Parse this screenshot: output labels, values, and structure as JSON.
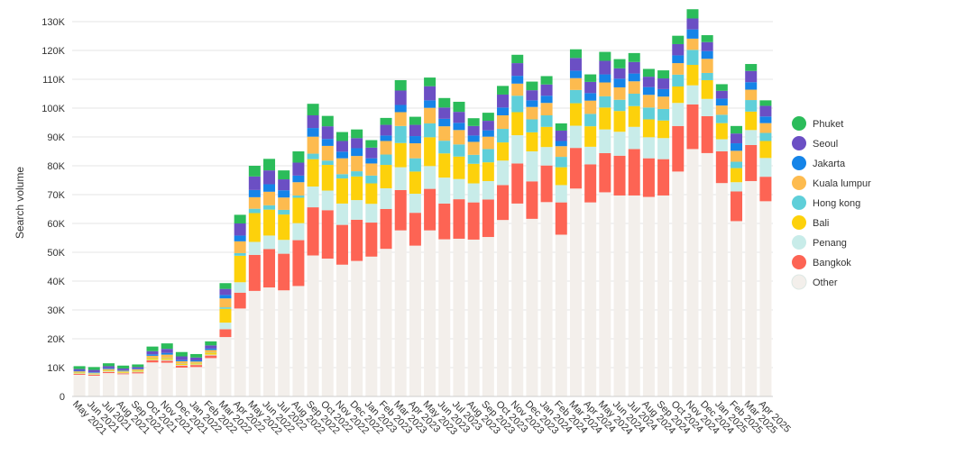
{
  "chart_data": {
    "type": "bar",
    "stacked": true,
    "ylabel": "Search volume",
    "xlabel": "",
    "ylim": [
      0,
      135000
    ],
    "yticks": [
      {
        "value": 0,
        "label": "0"
      },
      {
        "value": 10000,
        "label": "10K"
      },
      {
        "value": 20000,
        "label": "20K"
      },
      {
        "value": 30000,
        "label": "30K"
      },
      {
        "value": 40000,
        "label": "40K"
      },
      {
        "value": 50000,
        "label": "50K"
      },
      {
        "value": 60000,
        "label": "60K"
      },
      {
        "value": 70000,
        "label": "70K"
      },
      {
        "value": 80000,
        "label": "80K"
      },
      {
        "value": 90000,
        "label": "90K"
      },
      {
        "value": 100000,
        "label": "100K"
      },
      {
        "value": 110000,
        "label": "110K"
      },
      {
        "value": 120000,
        "label": "120K"
      },
      {
        "value": 130000,
        "label": "130K"
      }
    ],
    "grid": "horizontal",
    "legend_position": "right",
    "categories": [
      "May 2021",
      "Jun 2021",
      "Jul 2021",
      "Aug 2021",
      "Sep 2021",
      "Oct 2021",
      "Nov 2021",
      "Dec 2021",
      "Jan 2022",
      "Feb 2022",
      "Mar 2022",
      "Apr 2022",
      "May 2022",
      "Jun 2022",
      "Jul 2022",
      "Aug 2022",
      "Sep 2022",
      "Oct 2022",
      "Nov 2022",
      "Dec 2022",
      "Jan 2023",
      "Feb 2023",
      "Mar 2023",
      "Apr 2023",
      "May 2023",
      "Jun 2023",
      "Jul 2023",
      "Aug 2023",
      "Sep 2023",
      "Oct 2023",
      "Nov 2023",
      "Dec 2023",
      "Jan 2024",
      "Feb 2024",
      "Mar 2024",
      "Apr 2024",
      "May 2024",
      "Jun 2024",
      "Jul 2024",
      "Aug 2024",
      "Sep 2024",
      "Oct 2024",
      "Nov 2024",
      "Dec 2024",
      "Jan 2025",
      "Feb 2025",
      "Mar 2025",
      "Apr 2025"
    ],
    "series": [
      {
        "name": "Other",
        "color": "#f3efeb",
        "values": [
          7500,
          7200,
          8100,
          7700,
          8000,
          11800,
          11700,
          10000,
          10200,
          13300,
          20600,
          30500,
          36600,
          37800,
          36800,
          38300,
          48900,
          47800,
          45700,
          47000,
          48500,
          51200,
          57600,
          52300,
          57600,
          54500,
          54700,
          54400,
          55300,
          61200,
          66900,
          61600,
          67400,
          56100,
          72100,
          67300,
          70800,
          69700,
          69700,
          69200,
          69700,
          78000,
          85800,
          84400,
          74000,
          60800,
          74700,
          67700
        ]
      },
      {
        "name": "Bangkok",
        "color": "#fd6454",
        "values": [
          300,
          300,
          400,
          300,
          400,
          700,
          700,
          700,
          700,
          900,
          2700,
          5500,
          12500,
          13300,
          12700,
          15900,
          16700,
          16800,
          13800,
          14300,
          11800,
          13800,
          14000,
          11400,
          14400,
          12400,
          13700,
          12900,
          13000,
          12100,
          13900,
          13000,
          12700,
          11200,
          14100,
          13200,
          13600,
          13800,
          16100,
          13400,
          12600,
          15800,
          15500,
          12800,
          11000,
          10300,
          12500,
          8500
        ]
      },
      {
        "name": "Penang",
        "color": "#c8ece9",
        "values": [
          200,
          200,
          200,
          200,
          200,
          200,
          300,
          200,
          200,
          300,
          2300,
          3600,
          4500,
          4700,
          4800,
          5900,
          7200,
          6800,
          7400,
          6800,
          6500,
          7200,
          7900,
          6600,
          7900,
          9000,
          7000,
          6600,
          6400,
          8500,
          9800,
          10400,
          6400,
          6000,
          7700,
          6100,
          8200,
          8300,
          7700,
          7300,
          7300,
          8000,
          6600,
          6000,
          4200,
          3200,
          5200,
          6500
        ]
      },
      {
        "name": "Bali",
        "color": "#fdd10b",
        "values": [
          300,
          200,
          300,
          300,
          300,
          600,
          500,
          400,
          400,
          700,
          4800,
          9200,
          10000,
          9000,
          8800,
          8800,
          9500,
          8900,
          8700,
          8200,
          7100,
          8100,
          8400,
          7700,
          10000,
          8400,
          7800,
          6800,
          6500,
          6300,
          8000,
          6600,
          7000,
          6200,
          7800,
          7100,
          7600,
          7200,
          7200,
          6200,
          6100,
          5700,
          7100,
          6500,
          5600,
          4900,
          6400,
          5900
        ]
      },
      {
        "name": "Hong kong",
        "color": "#5fcfd9",
        "values": [
          100,
          100,
          100,
          100,
          100,
          100,
          100,
          100,
          100,
          100,
          500,
          900,
          1500,
          1500,
          1600,
          800,
          1900,
          1500,
          1500,
          1800,
          2700,
          3600,
          5900,
          4600,
          4800,
          4400,
          4200,
          3100,
          4600,
          4700,
          5700,
          4500,
          4000,
          3600,
          4600,
          4300,
          3900,
          3900,
          4300,
          4100,
          4000,
          4100,
          5200,
          2500,
          2900,
          2200,
          4000,
          2800
        ]
      },
      {
        "name": "Kuala lumpur",
        "color": "#fdbb4f",
        "values": [
          300,
          200,
          400,
          300,
          400,
          700,
          1200,
          800,
          500,
          800,
          3100,
          4100,
          4000,
          4700,
          4300,
          4600,
          5900,
          5100,
          5500,
          5300,
          4200,
          4700,
          4800,
          5200,
          5400,
          5000,
          5000,
          4500,
          4300,
          4700,
          4200,
          4300,
          4300,
          3700,
          4100,
          4600,
          4800,
          4300,
          4300,
          4400,
          4300,
          4000,
          3900,
          4900,
          3200,
          3800,
          3600,
          3400
        ]
      },
      {
        "name": "Jakarta",
        "color": "#1584e8",
        "values": [
          200,
          200,
          300,
          200,
          200,
          500,
          600,
          400,
          400,
          500,
          1200,
          2000,
          2500,
          2600,
          2500,
          2300,
          3000,
          2400,
          2300,
          2700,
          1800,
          1900,
          2500,
          2500,
          2600,
          2600,
          2500,
          2200,
          2200,
          2700,
          2700,
          2300,
          2500,
          1800,
          2600,
          2600,
          2800,
          3000,
          2700,
          2700,
          2600,
          2700,
          3200,
          2700,
          2400,
          2600,
          2600,
          2300
        ]
      },
      {
        "name": "Seoul",
        "color": "#6b4fc4",
        "values": [
          600,
          800,
          700,
          600,
          600,
          1100,
          1400,
          1300,
          1000,
          1100,
          2100,
          4200,
          4700,
          4800,
          3800,
          4500,
          4400,
          4400,
          3700,
          3500,
          3700,
          3700,
          5000,
          3900,
          4900,
          3900,
          3800,
          3300,
          3300,
          4500,
          4400,
          3500,
          3900,
          3600,
          4400,
          3900,
          4700,
          3600,
          4000,
          3600,
          3700,
          3900,
          3800,
          3100,
          2700,
          3400,
          3900,
          3700
        ]
      },
      {
        "name": "Phuket",
        "color": "#2bbc5a",
        "values": [
          1000,
          1000,
          1000,
          1000,
          900,
          1600,
          1900,
          1500,
          1200,
          1400,
          2000,
          3000,
          3700,
          4000,
          3100,
          3900,
          4000,
          3600,
          3100,
          3000,
          2600,
          2400,
          3600,
          2800,
          3000,
          3300,
          3500,
          2700,
          2800,
          3000,
          2900,
          3000,
          2900,
          2500,
          3000,
          2600,
          3100,
          3200,
          3100,
          2700,
          2800,
          2900,
          3200,
          2400,
          2300,
          2600,
          2400,
          1900
        ]
      }
    ]
  }
}
